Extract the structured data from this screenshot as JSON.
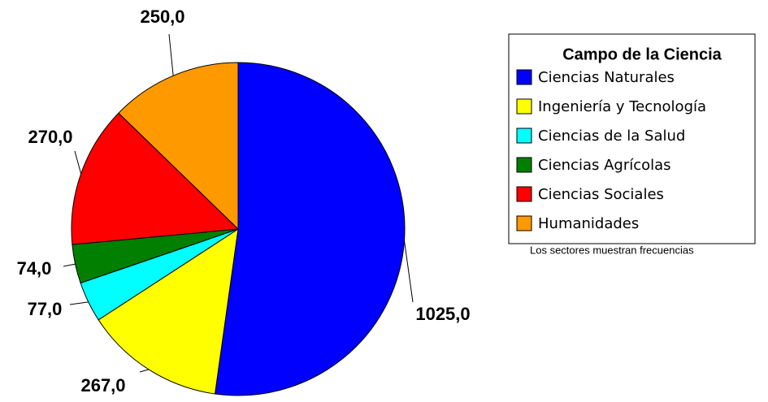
{
  "chart_data": {
    "type": "pie",
    "categories": [
      "Ciencias Naturales",
      "Ingeniería y Tecnología",
      "Ciencias de la Salud",
      "Ciencias Agrícolas",
      "Ciencias Sociales",
      "Humanidades"
    ],
    "values": [
      1025,
      267,
      77,
      74,
      270,
      250
    ],
    "value_labels": [
      "1025,0",
      "267,0",
      "77,0",
      "74,0",
      "270,0",
      "250,0"
    ],
    "colors": [
      "#0000ff",
      "#ffff00",
      "#00ffff",
      "#007f00",
      "#ff0000",
      "#ff9900"
    ],
    "legend_title": "Campo de la Ciencia",
    "note": "Los sectores muestran frecuencias"
  }
}
